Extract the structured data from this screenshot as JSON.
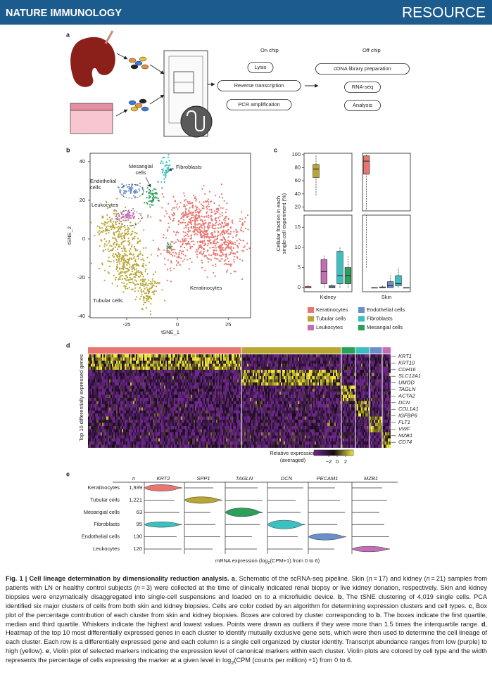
{
  "header": {
    "journal": "NATURE IMMUNOLOGY",
    "section": "RESOURCE"
  },
  "panel_a": {
    "label": "a",
    "on_chip": "On chip",
    "off_chip": "Off chip",
    "on_steps": [
      "Lysis",
      "Reverse transcription",
      "PCR amplification"
    ],
    "off_steps": [
      "cDNA library preparation",
      "RNA-seq",
      "Analysis"
    ]
  },
  "panel_b": {
    "label": "b",
    "chart_data": {
      "type": "scatter",
      "xlabel": "tSNE_1",
      "ylabel": "tSNE_2",
      "xlim": [
        -43,
        36
      ],
      "ylim": [
        -40.7,
        44.3
      ],
      "xticks": [
        -25,
        0,
        25
      ],
      "yticks": [
        40,
        20,
        0,
        -20,
        -40
      ],
      "annotations": [
        [
          "Mesangial",
          "cells"
        ],
        [
          "Fibroblasts"
        ],
        [
          "Endothelial",
          "cells"
        ],
        [
          "Leukocytes"
        ],
        [
          "Keratinocytes"
        ],
        [
          "Tubular cells"
        ]
      ]
    }
  },
  "panel_c": {
    "label": "c",
    "chart_data": {
      "type": "box",
      "ylabel": [
        "Cellular fraction in each",
        "single-cell experiment (%)"
      ],
      "groups": [
        "Kidney",
        "Skin"
      ],
      "ylim_upper": [
        14,
        102
      ],
      "yticks_upper": [
        20,
        40,
        60,
        80,
        100
      ],
      "ylim_lower": [
        -1,
        18
      ],
      "yticks_lower": [
        0,
        5,
        10,
        15
      ],
      "series": [
        {
          "name": "Keratinocytes",
          "color": "#e8756f",
          "boxes": [
            {
              "whislo": 0,
              "q1": 0,
              "med": 0,
              "q3": 0.3,
              "whishi": 1
            },
            {
              "whislo": 5,
              "q1": 70,
              "med": 90,
              "q3": 98,
              "whishi": 100
            }
          ]
        },
        {
          "name": "Tubular cells",
          "color": "#b8a532",
          "boxes": [
            {
              "whislo": 38,
              "q1": 65,
              "med": 78,
              "q3": 85,
              "whishi": 100
            },
            {
              "whislo": 0,
              "q1": 0,
              "med": 0,
              "q3": 0,
              "whishi": 0
            }
          ]
        },
        {
          "name": "Leukocytes",
          "color": "#c36fb5",
          "boxes": [
            {
              "whislo": 0,
              "q1": 1,
              "med": 4,
              "q3": 7,
              "whishi": 8
            },
            {
              "whislo": 0,
              "q1": 0,
              "med": 0,
              "q3": 0.2,
              "whishi": 0.5
            }
          ]
        },
        {
          "name": "Endothelial cells",
          "color": "#6b8fc9",
          "boxes": [
            {
              "whislo": 0,
              "q1": 0,
              "med": 0.2,
              "q3": 0.5,
              "whishi": 1
            },
            {
              "whislo": 0,
              "q1": 0,
              "med": 0.5,
              "q3": 1.5,
              "whishi": 3
            }
          ]
        },
        {
          "name": "Fibroblasts",
          "color": "#3bbfbf",
          "boxes": [
            {
              "whislo": 0,
              "q1": 1,
              "med": 3,
              "q3": 9,
              "whishi": 10
            },
            {
              "whislo": 0,
              "q1": 0.5,
              "med": 1,
              "q3": 3,
              "whishi": 5
            }
          ]
        },
        {
          "name": "Mesangial cells",
          "color": "#2aa05a",
          "boxes": [
            {
              "whislo": 0,
              "q1": 1,
              "med": 3,
              "q3": 5,
              "whishi": 8
            },
            {
              "whislo": 0,
              "q1": 0,
              "med": 0,
              "q3": 0,
              "whishi": 0
            }
          ]
        }
      ]
    }
  },
  "panel_d": {
    "label": "d",
    "ylabel": "Top 10 differentially expressed genes",
    "genes": [
      "KRT1",
      "KRT10",
      "CDH16",
      "SLC12A1",
      "UMOD",
      "TAGLN",
      "ACTA2",
      "DCN",
      "COL1A1",
      "IGFBP6",
      "FLT1",
      "VWF",
      "MZB1",
      "CD74"
    ],
    "colorbar_label": [
      "Relative expression",
      "(averaged)"
    ],
    "colorbar_ticks": [
      {
        "value": -2,
        "label": "−2"
      },
      0,
      2
    ]
  },
  "panel_e": {
    "label": "e",
    "n_header": "n",
    "columns": [
      "KRT2",
      "SPP1",
      "TAGLN",
      "DCN",
      "PECAM1",
      "MZB1"
    ],
    "rows": [
      {
        "cell": "Keratinocytes",
        "n": "1,939"
      },
      {
        "cell": "Tubular cells",
        "n": "1,221"
      },
      {
        "cell": "Mesangial cells",
        "n": "63"
      },
      {
        "cell": "Fibroblasts",
        "n": "95"
      },
      {
        "cell": "Endothelial cells",
        "n": "130"
      },
      {
        "cell": "Leukocytes",
        "n": "120"
      }
    ],
    "xlabel": [
      "mRNA expression (log",
      "2",
      "(CPM+1) from 0 to 6)"
    ]
  },
  "caption": [
    {
      "bold": "Fig. 1 | Cell lineage determination by dimensionality reduction analysis."
    },
    {
      "text": " "
    },
    {
      "bold": "a"
    },
    {
      "text": ", Schematic of the scRNA-seq pipeline. Skin ("
    },
    {
      "italic": "n"
    },
    {
      "text": " = 17) and kidney ("
    },
    {
      "italic": "n"
    },
    {
      "text": " = 21) samples from patients with LN or healthy control subjects ("
    },
    {
      "italic": "n"
    },
    {
      "text": " = 3) were collected at the time of clinically indicated renal biopsy or live kidney donation, respectively. Skin and kidney biopsies were enzymatically disaggregated into single-cell suspensions and loaded on to a microfluidic device. "
    },
    {
      "bold": "b"
    },
    {
      "text": ", The tSNE clustering of 4,019 single cells. PCA identified six major clusters of cells from both skin and kidney biopsies. Cells are color coded by an algorithm for determining expression clusters and cell types. "
    },
    {
      "bold": "c"
    },
    {
      "text": ", Box plot of the percentage contribution of each cluster from skin and kidney biopsies. Boxes are colored by cluster corresponding to "
    },
    {
      "bold": "b"
    },
    {
      "text": ". The boxes indicate the first quartile, median and third quartile. Whiskers indicate the highest and lowest values. Points were drawn as outliers if they were more than 1.5 times the interquartile range. "
    },
    {
      "bold": "d"
    },
    {
      "text": ", Heatmap of the top 10 most differentially expressed genes in each cluster to identify mutually exclusive gene sets, which were then used to determine the cell lineage of each cluster. Each row is a differentially expressed gene and each column is a single cell organized by cluster identity. Transcript abundance ranges from low (purple) to high (yellow). "
    },
    {
      "bold": "e"
    },
    {
      "text": ", Violin plot of selected markers indicating the expression level of canonical markers within each cluster. Violin plots are colored by cell type and the width represents the percentage of cells expressing the marker at a given level in log"
    },
    {
      "sub": "2"
    },
    {
      "text": "(CPM (counts per million) +1) from 0 to 6."
    }
  ]
}
